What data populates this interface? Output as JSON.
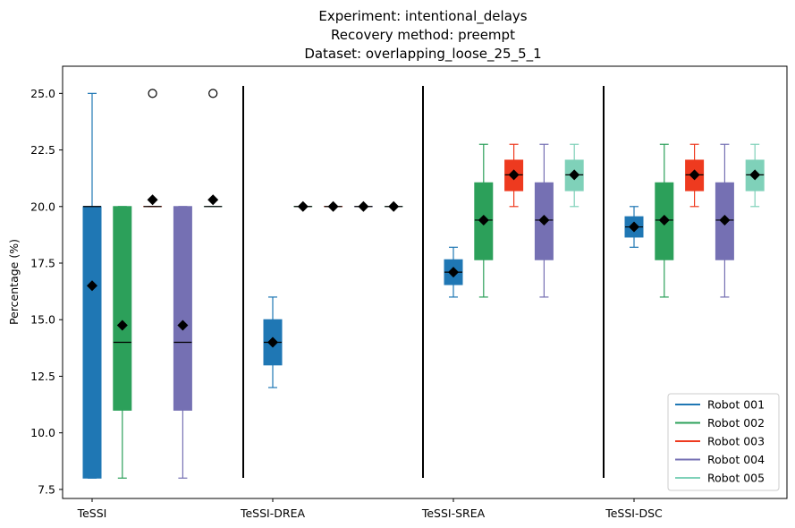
{
  "chart_data": {
    "type": "box",
    "title_lines": [
      "Experiment: intentional_delays",
      "Recovery method: preempt",
      "Dataset: overlapping_loose_25_5_1"
    ],
    "ylabel": "Percentage (%)",
    "xlabel": "",
    "ylim": [
      7.1,
      26.2
    ],
    "yticks": [
      "7.5",
      "10.0",
      "12.5",
      "15.0",
      "17.5",
      "20.0",
      "22.5",
      "25.0"
    ],
    "grid": false,
    "legend_position": "lower-right",
    "groups": [
      "TeSSI",
      "TeSSI-DREA",
      "TeSSI-SREA",
      "TeSSI-DSC"
    ],
    "series": [
      {
        "name": "Robot 001",
        "color": "#1f77b4",
        "boxes": [
          {
            "group": "TeSSI",
            "whisker_low": 8.0,
            "q1": 8.0,
            "median": 20.0,
            "q3": 20.0,
            "whisker_high": 25.0,
            "mean": 16.5,
            "outliers": []
          },
          {
            "group": "TeSSI-DREA",
            "whisker_low": 12.0,
            "q1": 13.0,
            "median": 14.0,
            "q3": 15.0,
            "whisker_high": 16.0,
            "mean": 14.0,
            "outliers": []
          },
          {
            "group": "TeSSI-SREA",
            "whisker_low": 16.0,
            "q1": 16.55,
            "median": 17.1,
            "q3": 17.65,
            "whisker_high": 18.2,
            "mean": 17.1,
            "outliers": []
          },
          {
            "group": "TeSSI-DSC",
            "whisker_low": 18.2,
            "q1": 18.65,
            "median": 19.1,
            "q3": 19.55,
            "whisker_high": 20.0,
            "mean": 19.1,
            "outliers": []
          }
        ]
      },
      {
        "name": "Robot 002",
        "color": "#2ca05a",
        "boxes": [
          {
            "group": "TeSSI",
            "whisker_low": 8.0,
            "q1": 11.0,
            "median": 14.0,
            "q3": 20.0,
            "whisker_high": 20.0,
            "mean": 14.75,
            "outliers": []
          },
          {
            "group": "TeSSI-DREA",
            "whisker_low": 20.0,
            "q1": 20.0,
            "median": 20.0,
            "q3": 20.0,
            "whisker_high": 20.0,
            "mean": 20.0,
            "outliers": []
          },
          {
            "group": "TeSSI-SREA",
            "whisker_low": 16.0,
            "q1": 17.65,
            "median": 19.4,
            "q3": 21.05,
            "whisker_high": 22.75,
            "mean": 19.4,
            "outliers": []
          },
          {
            "group": "TeSSI-DSC",
            "whisker_low": 16.0,
            "q1": 17.65,
            "median": 19.4,
            "q3": 21.05,
            "whisker_high": 22.75,
            "mean": 19.4,
            "outliers": []
          }
        ]
      },
      {
        "name": "Robot 003",
        "color": "#ee3a1f",
        "boxes": [
          {
            "group": "TeSSI",
            "whisker_low": 20.0,
            "q1": 20.0,
            "median": 20.0,
            "q3": 20.0,
            "whisker_high": 20.0,
            "mean": 20.3,
            "outliers": [
              25.0
            ]
          },
          {
            "group": "TeSSI-DREA",
            "whisker_low": 20.0,
            "q1": 20.0,
            "median": 20.0,
            "q3": 20.0,
            "whisker_high": 20.0,
            "mean": 20.0,
            "outliers": []
          },
          {
            "group": "TeSSI-SREA",
            "whisker_low": 20.0,
            "q1": 20.7,
            "median": 21.4,
            "q3": 22.05,
            "whisker_high": 22.75,
            "mean": 21.4,
            "outliers": []
          },
          {
            "group": "TeSSI-DSC",
            "whisker_low": 20.0,
            "q1": 20.7,
            "median": 21.4,
            "q3": 22.05,
            "whisker_high": 22.75,
            "mean": 21.4,
            "outliers": []
          }
        ]
      },
      {
        "name": "Robot 004",
        "color": "#7570b3",
        "boxes": [
          {
            "group": "TeSSI",
            "whisker_low": 8.0,
            "q1": 11.0,
            "median": 14.0,
            "q3": 20.0,
            "whisker_high": 20.0,
            "mean": 14.75,
            "outliers": []
          },
          {
            "group": "TeSSI-DREA",
            "whisker_low": 20.0,
            "q1": 20.0,
            "median": 20.0,
            "q3": 20.0,
            "whisker_high": 20.0,
            "mean": 20.0,
            "outliers": []
          },
          {
            "group": "TeSSI-SREA",
            "whisker_low": 16.0,
            "q1": 17.65,
            "median": 19.4,
            "q3": 21.05,
            "whisker_high": 22.75,
            "mean": 19.4,
            "outliers": []
          },
          {
            "group": "TeSSI-DSC",
            "whisker_low": 16.0,
            "q1": 17.65,
            "median": 19.4,
            "q3": 21.05,
            "whisker_high": 22.75,
            "mean": 19.4,
            "outliers": []
          }
        ]
      },
      {
        "name": "Robot 005",
        "color": "#7fd1b9",
        "boxes": [
          {
            "group": "TeSSI",
            "whisker_low": 20.0,
            "q1": 20.0,
            "median": 20.0,
            "q3": 20.0,
            "whisker_high": 20.0,
            "mean": 20.3,
            "outliers": [
              25.0
            ]
          },
          {
            "group": "TeSSI-DREA",
            "whisker_low": 20.0,
            "q1": 20.0,
            "median": 20.0,
            "q3": 20.0,
            "whisker_high": 20.0,
            "mean": 20.0,
            "outliers": []
          },
          {
            "group": "TeSSI-SREA",
            "whisker_low": 20.0,
            "q1": 20.7,
            "median": 21.4,
            "q3": 22.05,
            "whisker_high": 22.75,
            "mean": 21.4,
            "outliers": []
          },
          {
            "group": "TeSSI-DSC",
            "whisker_low": 20.0,
            "q1": 20.7,
            "median": 21.4,
            "q3": 22.05,
            "whisker_high": 22.75,
            "mean": 21.4,
            "outliers": []
          }
        ]
      }
    ]
  }
}
